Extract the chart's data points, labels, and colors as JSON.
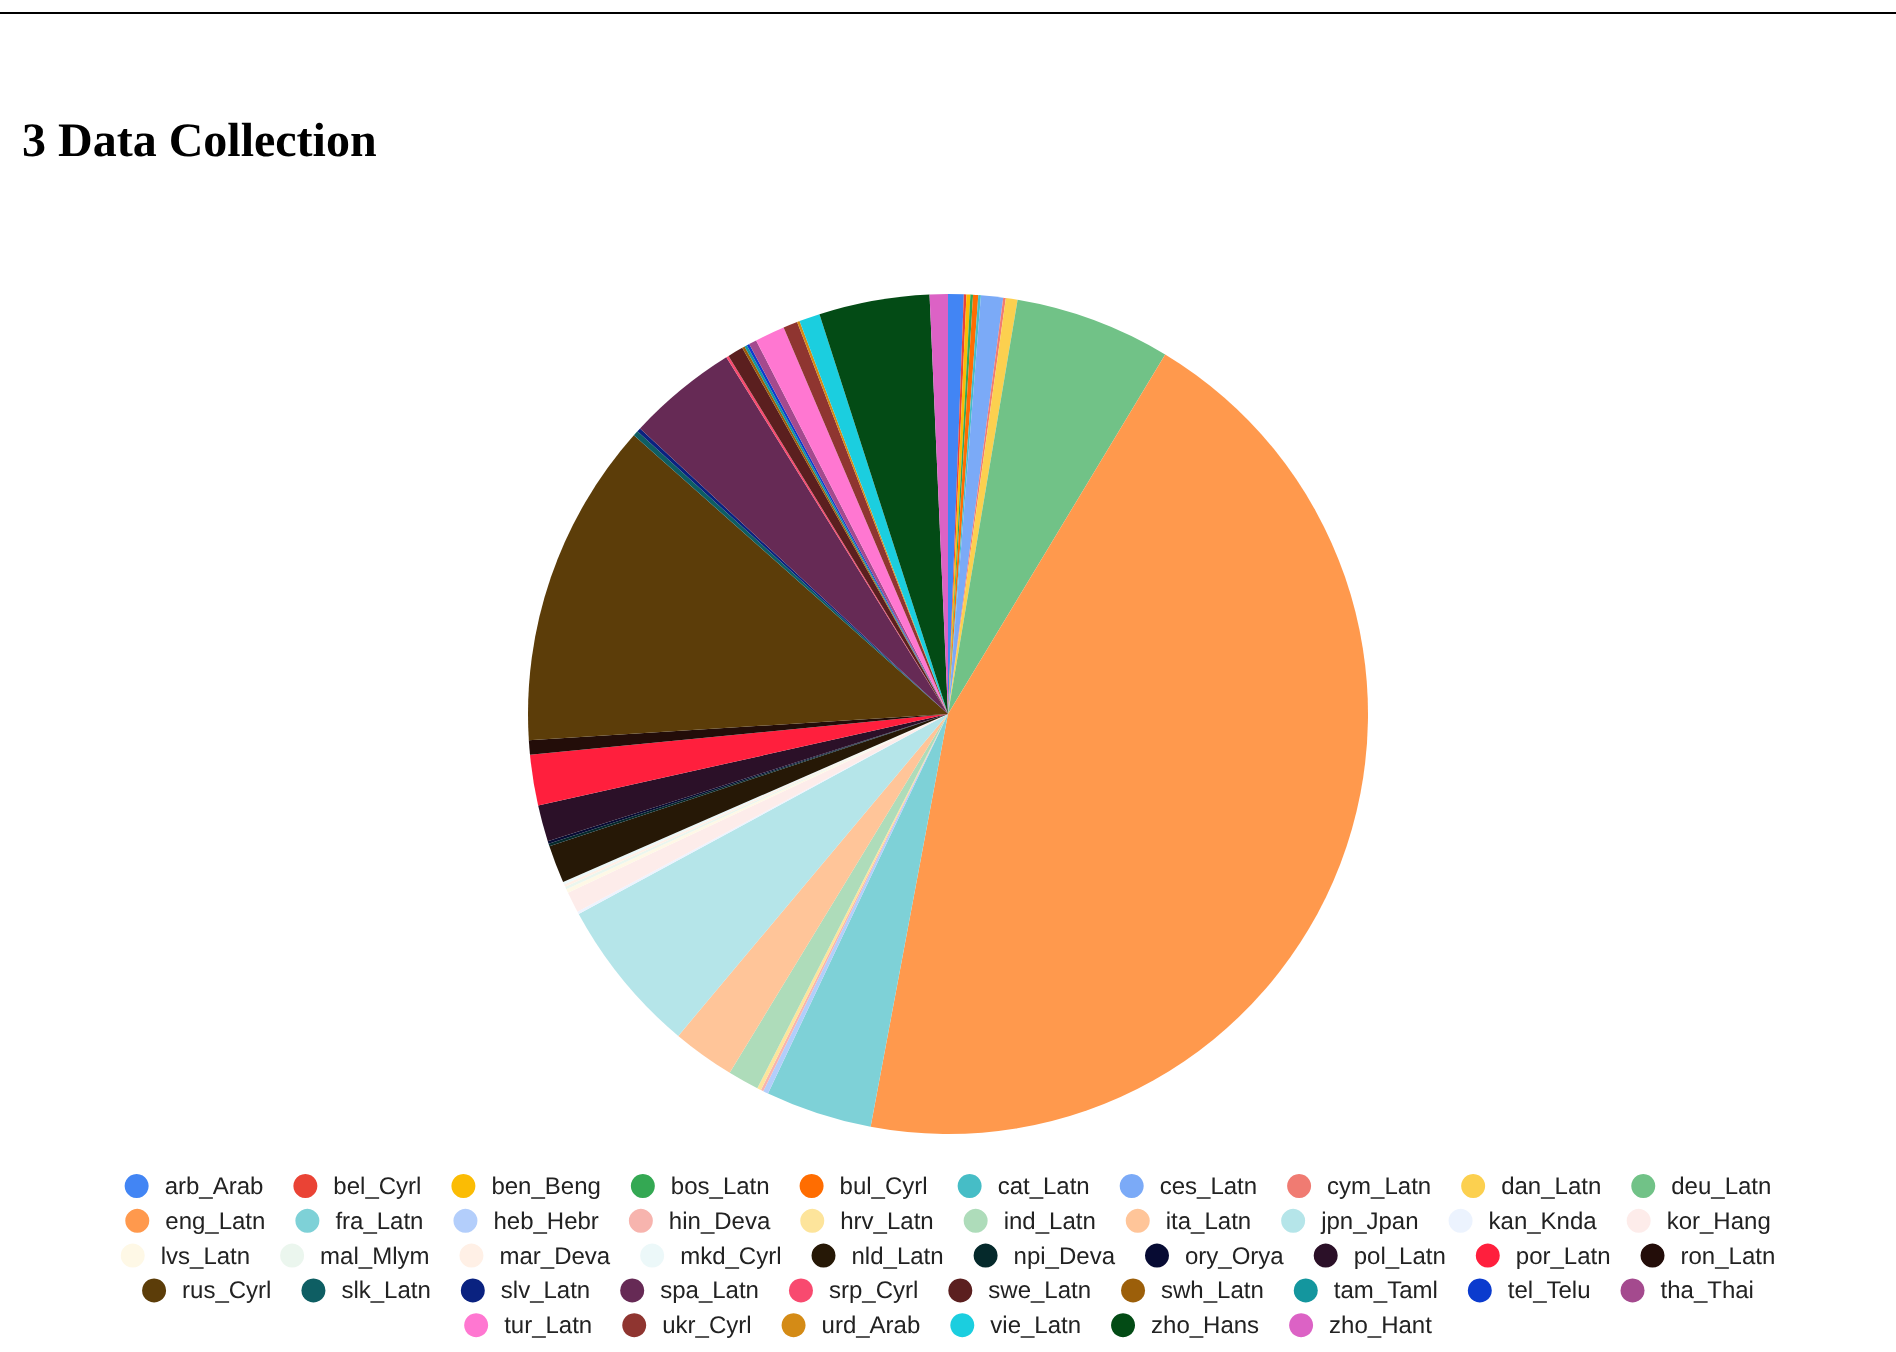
{
  "chart_data": {
    "type": "pie",
    "title": "3 Data Collection",
    "categories": [
      "arb_Arab",
      "bel_Cyrl",
      "ben_Beng",
      "bos_Latn",
      "bul_Cyrl",
      "cat_Latn",
      "ces_Latn",
      "cym_Latn",
      "dan_Latn",
      "deu_Latn",
      "eng_Latn",
      "fra_Latn",
      "heb_Hebr",
      "hin_Deva",
      "hrv_Latn",
      "ind_Latn",
      "ita_Latn",
      "jpn_Jpan",
      "kan_Knda",
      "kor_Hang",
      "lvs_Latn",
      "mal_Mlym",
      "mar_Deva",
      "mkd_Cyrl",
      "nld_Latn",
      "npi_Deva",
      "ory_Orya",
      "pol_Latn",
      "por_Latn",
      "ron_Latn",
      "rus_Cyrl",
      "slk_Latn",
      "slv_Latn",
      "spa_Latn",
      "srp_Cyrl",
      "swe_Latn",
      "swh_Latn",
      "tam_Taml",
      "tel_Telu",
      "tha_Thai",
      "tur_Latn",
      "ukr_Cyrl",
      "urd_Arab",
      "vie_Latn",
      "zho_Hans",
      "zho_Hant"
    ],
    "values": [
      0.6,
      0.1,
      0.15,
      0.1,
      0.2,
      0.1,
      0.85,
      0.1,
      0.45,
      6.0,
      44.3,
      4.1,
      0.2,
      0.1,
      0.15,
      1.2,
      2.4,
      6.0,
      0.1,
      0.8,
      0.15,
      0.1,
      0.1,
      0.1,
      1.45,
      0.1,
      0.1,
      1.4,
      1.95,
      0.55,
      12.55,
      0.2,
      0.15,
      4.25,
      0.1,
      0.6,
      0.1,
      0.1,
      0.1,
      0.3,
      1.15,
      0.55,
      0.1,
      0.8,
      4.25,
      0.7
    ],
    "colors": [
      "#4285f4",
      "#ea4335",
      "#fbbc04",
      "#34a853",
      "#ff6d01",
      "#46bdc6",
      "#7baaf7",
      "#f07b72",
      "#fcd04f",
      "#71c287",
      "#ff994d",
      "#7ed1d7",
      "#b3cefb",
      "#f7b4ae",
      "#fde49b",
      "#aedcba",
      "#ffc599",
      "#b5e5e9",
      "#ecf3fe",
      "#fdecea",
      "#fef8e6",
      "#ebf6ee",
      "#fff0e6",
      "#ecf8f9",
      "#261806",
      "#05292b",
      "#070b33",
      "#2b1028",
      "#ff1f3d",
      "#230d09",
      "#5c3d09",
      "#0e5e63",
      "#0a2280",
      "#662a55",
      "#f84a6f",
      "#5b1f1f",
      "#9c5f0a",
      "#14969e",
      "#0b3bce",
      "#a44a8e",
      "#ff77d1",
      "#8f3530",
      "#d48b16",
      "#1bcedf",
      "#034b15",
      "#dc62c5"
    ],
    "legend": "bottom"
  }
}
